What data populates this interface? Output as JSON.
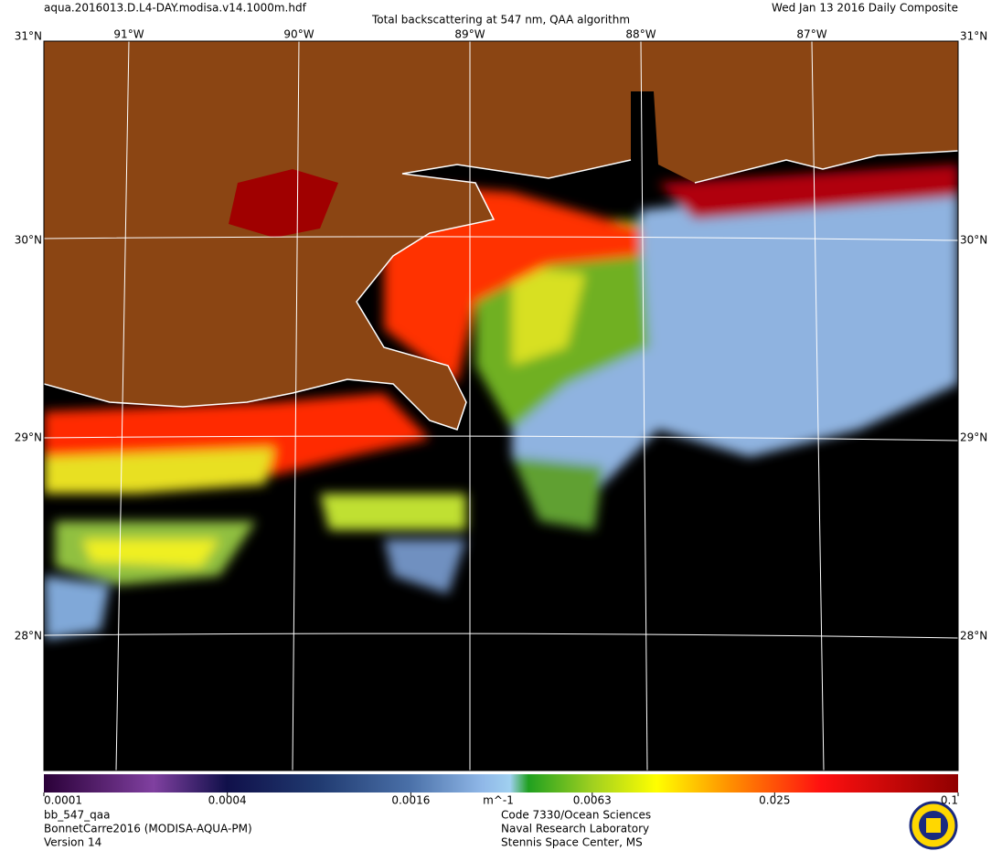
{
  "header": {
    "file": "aqua.2016013.D.L4-DAY.modisa.v14.1000m.hdf",
    "title": "Total backscattering at 547 nm, QAA algorithm",
    "date": "Wed Jan 13 2016 Daily Composite"
  },
  "map": {
    "lat_labels": [
      "31°N",
      "30°N",
      "29°N",
      "28°N"
    ],
    "lon_labels": [
      "91°W",
      "90°W",
      "89°W",
      "88°W",
      "87°W"
    ]
  },
  "colorbar": {
    "lim": [
      0.0001,
      0.1
    ],
    "log": true,
    "ticks": [
      0.0001,
      0.0004,
      0.0016,
      0.0063,
      0.025,
      0.1
    ],
    "unit": "m^-1"
  },
  "footer": {
    "left": [
      "bb_547_qaa",
      "BonnetCarre2016 (MODISA-AQUA-PM)",
      "Version 14"
    ],
    "center": [
      "Code 7330/Ocean Sciences",
      "Naval Research Laboratory",
      "Stennis Space Center, MS"
    ]
  }
}
